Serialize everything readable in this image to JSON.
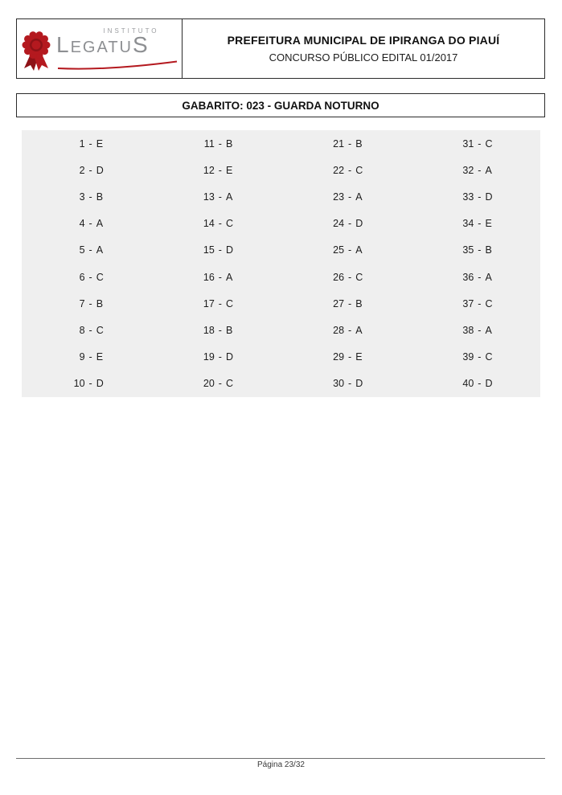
{
  "header": {
    "logo": {
      "top_label": "INSTITUTO",
      "wordmark_first": "L",
      "wordmark_middle": "EGATU",
      "wordmark_last": "S"
    },
    "title": "PREFEITURA MUNICIPAL DE IPIRANGA DO PIAUÍ",
    "subtitle": "CONCURSO PÚBLICO EDITAL 01/2017"
  },
  "gabarito": {
    "title": "GABARITO: 023 - GUARDA NOTURNO"
  },
  "answers": {
    "separator": "-",
    "columns": [
      [
        {
          "number": "1",
          "letter": "E"
        },
        {
          "number": "2",
          "letter": "D"
        },
        {
          "number": "3",
          "letter": "B"
        },
        {
          "number": "4",
          "letter": "A"
        },
        {
          "number": "5",
          "letter": "A"
        },
        {
          "number": "6",
          "letter": "C"
        },
        {
          "number": "7",
          "letter": "B"
        },
        {
          "number": "8",
          "letter": "C"
        },
        {
          "number": "9",
          "letter": "E"
        },
        {
          "number": "10",
          "letter": "D"
        }
      ],
      [
        {
          "number": "11",
          "letter": "B"
        },
        {
          "number": "12",
          "letter": "E"
        },
        {
          "number": "13",
          "letter": "A"
        },
        {
          "number": "14",
          "letter": "C"
        },
        {
          "number": "15",
          "letter": "D"
        },
        {
          "number": "16",
          "letter": "A"
        },
        {
          "number": "17",
          "letter": "C"
        },
        {
          "number": "18",
          "letter": "B"
        },
        {
          "number": "19",
          "letter": "D"
        },
        {
          "number": "20",
          "letter": "C"
        }
      ],
      [
        {
          "number": "21",
          "letter": "B"
        },
        {
          "number": "22",
          "letter": "C"
        },
        {
          "number": "23",
          "letter": "A"
        },
        {
          "number": "24",
          "letter": "D"
        },
        {
          "number": "25",
          "letter": "A"
        },
        {
          "number": "26",
          "letter": "C"
        },
        {
          "number": "27",
          "letter": "B"
        },
        {
          "number": "28",
          "letter": "A"
        },
        {
          "number": "29",
          "letter": "E"
        },
        {
          "number": "30",
          "letter": "D"
        }
      ],
      [
        {
          "number": "31",
          "letter": "C"
        },
        {
          "number": "32",
          "letter": "A"
        },
        {
          "number": "33",
          "letter": "D"
        },
        {
          "number": "34",
          "letter": "E"
        },
        {
          "number": "35",
          "letter": "B"
        },
        {
          "number": "36",
          "letter": "A"
        },
        {
          "number": "37",
          "letter": "C"
        },
        {
          "number": "38",
          "letter": "A"
        },
        {
          "number": "39",
          "letter": "C"
        },
        {
          "number": "40",
          "letter": "D"
        }
      ]
    ]
  },
  "footer": {
    "page_label": "Página 23/32"
  },
  "colors": {
    "brand_red": "#b4191f",
    "brand_red_dark": "#8e1217",
    "logo_gray": "#8d8f92",
    "answer_bg": "#efefef"
  }
}
